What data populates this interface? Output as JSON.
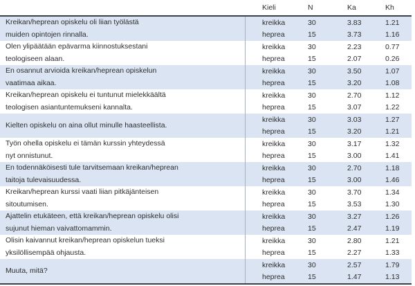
{
  "table": {
    "headers": {
      "kieli": "Kieli",
      "n": "N",
      "ka": "Ka",
      "kh": "Kh"
    },
    "groups": [
      {
        "statement": "Kreikan/heprean opiskelu oli liian työlästä\nmuiden opintojen rinnalla.",
        "rows": [
          {
            "kieli": "kreikka",
            "n": "30",
            "ka": "3.83",
            "kh": "1.21"
          },
          {
            "kieli": "heprea",
            "n": "15",
            "ka": "3.73",
            "kh": "1.16"
          }
        ]
      },
      {
        "statement": "Olen ylipäätään epävarma kiinnostuksestani\nteologiseen alaan.",
        "rows": [
          {
            "kieli": "kreikka",
            "n": "30",
            "ka": "2.23",
            "kh": "0.77"
          },
          {
            "kieli": "heprea",
            "n": "15",
            "ka": "2.07",
            "kh": "0.26"
          }
        ]
      },
      {
        "statement": "En osannut arvioida kreikan/heprean opiskelun\nvaatimaa aikaa.",
        "rows": [
          {
            "kieli": "kreikka",
            "n": "30",
            "ka": "3.50",
            "kh": "1.07"
          },
          {
            "kieli": "heprea",
            "n": "15",
            "ka": "3.20",
            "kh": "1.08"
          }
        ]
      },
      {
        "statement": "Kreikan/heprean opiskelu ei tuntunut mielekkäältä\nteologisen asiantuntemukseni kannalta.",
        "rows": [
          {
            "kieli": "kreikka",
            "n": "30",
            "ka": "2.70",
            "kh": "1.12"
          },
          {
            "kieli": "heprea",
            "n": "15",
            "ka": "3.07",
            "kh": "1.22"
          }
        ]
      },
      {
        "statement": "Kielten opiskelu on aina ollut minulle haasteellista.",
        "rows": [
          {
            "kieli": "kreikka",
            "n": "30",
            "ka": "3.03",
            "kh": "1.27"
          },
          {
            "kieli": "heprea",
            "n": "15",
            "ka": "3.20",
            "kh": "1.21"
          }
        ]
      },
      {
        "statement": "Työn ohella opiskelu ei tämän kurssin yhteydessä\nnyt onnistunut.",
        "rows": [
          {
            "kieli": "kreikka",
            "n": "30",
            "ka": "3.17",
            "kh": "1.32"
          },
          {
            "kieli": "heprea",
            "n": "15",
            "ka": "3.00",
            "kh": "1.41"
          }
        ]
      },
      {
        "statement": "En todennäköisesti tule tarvitsemaan kreikan/heprean\ntaitoja tulevaisuudessa.",
        "rows": [
          {
            "kieli": "kreikka",
            "n": "30",
            "ka": "2.70",
            "kh": "1.18"
          },
          {
            "kieli": "heprea",
            "n": "15",
            "ka": "3.00",
            "kh": "1.46"
          }
        ]
      },
      {
        "statement": "Kreikan/heprean kurssi vaati liian pitkäjänteisen\nsitoutumisen.",
        "rows": [
          {
            "kieli": "kreikka",
            "n": "30",
            "ka": "3.70",
            "kh": "1.34"
          },
          {
            "kieli": "heprea",
            "n": "15",
            "ka": "3.53",
            "kh": "1.30"
          }
        ]
      },
      {
        "statement": "Ajattelin etukäteen, että kreikan/heprean opiskelu olisi\nsujunut hieman vaivattomammin.",
        "rows": [
          {
            "kieli": "kreikka",
            "n": "30",
            "ka": "3.27",
            "kh": "1.26"
          },
          {
            "kieli": "heprea",
            "n": "15",
            "ka": "2.47",
            "kh": "1.19"
          }
        ]
      },
      {
        "statement": "Olisin kaivannut kreikan/heprean opiskelun tueksi\nyksilöllisempää ohjausta.",
        "rows": [
          {
            "kieli": "kreikka",
            "n": "30",
            "ka": "2.80",
            "kh": "1.21"
          },
          {
            "kieli": "heprea",
            "n": "15",
            "ka": "2.27",
            "kh": "1.33"
          }
        ]
      },
      {
        "statement": "Muuta, mitä?",
        "rows": [
          {
            "kieli": "kreikka",
            "n": "30",
            "ka": "2.57",
            "kh": "1.79"
          },
          {
            "kieli": "heprea",
            "n": "15",
            "ka": "1.47",
            "kh": "1.13"
          }
        ]
      }
    ]
  },
  "colors": {
    "band": "#dbe4f2",
    "rule_dark": "#3a4149",
    "divider": "#a6b0bf",
    "text": "#2d2d2d"
  }
}
